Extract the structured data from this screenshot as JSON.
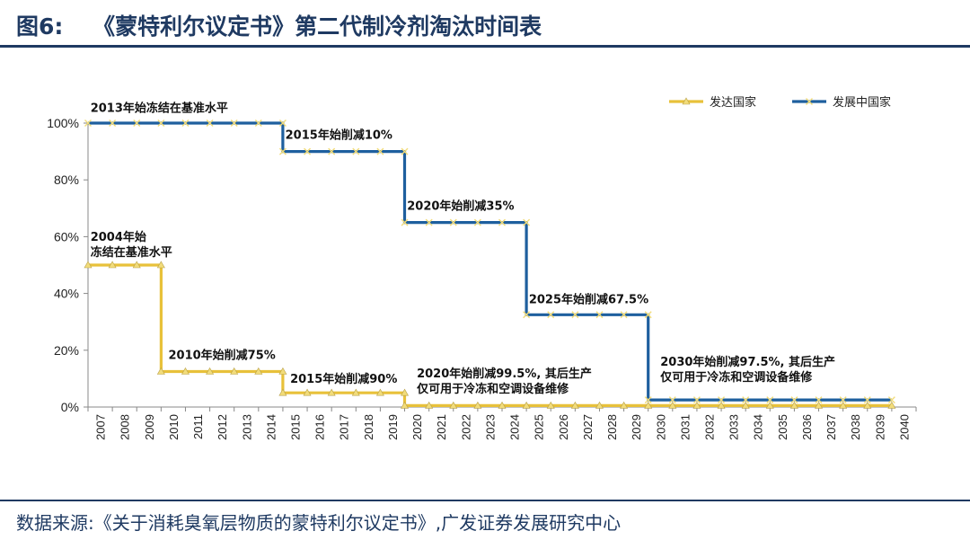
{
  "header": {
    "figure_label": "图6:",
    "title": "《蒙特利尔议定书》第二代制冷剂淘汰时间表"
  },
  "footer": {
    "source": "数据来源:《关于消耗臭氧层物质的蒙特利尔议定书》,广发证券发展研究中心"
  },
  "colors": {
    "developed": "#e8c13a",
    "developing": "#1e5f9e",
    "marker": "#f2dc7a",
    "title": "#1f3a62"
  },
  "chart_data": {
    "type": "line",
    "step": true,
    "x": [
      2007,
      2008,
      2009,
      2010,
      2011,
      2012,
      2013,
      2014,
      2015,
      2016,
      2017,
      2018,
      2019,
      2020,
      2021,
      2022,
      2023,
      2024,
      2025,
      2026,
      2027,
      2028,
      2029,
      2030,
      2031,
      2032,
      2033,
      2034,
      2035,
      2036,
      2037,
      2038,
      2039,
      2040
    ],
    "xtick_labels": [
      "2007",
      "2008",
      "2009",
      "2010",
      "2011",
      "2012",
      "2013",
      "2014",
      "2015",
      "2016",
      "2017",
      "2018",
      "2019",
      "2020",
      "2021",
      "2022",
      "2023",
      "2024",
      "2025",
      "2026",
      "2027",
      "2028",
      "2029",
      "2030",
      "2031",
      "2032",
      "2033",
      "2034",
      "2035",
      "2036",
      "2037",
      "2038",
      "2039",
      "2040"
    ],
    "ylim": [
      0,
      100
    ],
    "yticks": [
      0,
      20,
      40,
      60,
      80,
      100
    ],
    "ytick_labels": [
      "0%",
      "20%",
      "40%",
      "60%",
      "80%",
      "100%"
    ],
    "series": [
      {
        "name": "发达国家",
        "key": "developed",
        "marker": "triangle",
        "steps": [
          {
            "from": 2007,
            "to": 2010,
            "value": 50
          },
          {
            "from": 2010,
            "to": 2015,
            "value": 12.5
          },
          {
            "from": 2015,
            "to": 2020,
            "value": 5
          },
          {
            "from": 2020,
            "to": 2040,
            "value": 0.5
          }
        ]
      },
      {
        "name": "发展中国家",
        "key": "developing",
        "marker": "x",
        "steps": [
          {
            "from": 2007,
            "to": 2015,
            "value": 100
          },
          {
            "from": 2015,
            "to": 2020,
            "value": 90
          },
          {
            "from": 2020,
            "to": 2025,
            "value": 65
          },
          {
            "from": 2025,
            "to": 2030,
            "value": 32.5
          },
          {
            "from": 2030,
            "to": 2040,
            "value": 2.5
          }
        ]
      }
    ],
    "annotations": [
      {
        "key": "a1",
        "lines": [
          "2013年始冻结在基准水平"
        ],
        "x": 2007.1,
        "y": 104
      },
      {
        "key": "a2",
        "lines": [
          "2015年始削减10%"
        ],
        "x": 2015.1,
        "y": 94.5
      },
      {
        "key": "a3",
        "lines": [
          "2020年始削减35%"
        ],
        "x": 2020.1,
        "y": 69.5
      },
      {
        "key": "a4",
        "lines": [
          "2025年始削减67.5%"
        ],
        "x": 2025.1,
        "y": 36.5
      },
      {
        "key": "a5",
        "lines": [
          "2030年始削减97.5%, 其后生产",
          "仅可用于冷冻和空调设备维修"
        ],
        "x": 2030.5,
        "y": 14.5
      },
      {
        "key": "a6",
        "lines": [
          "2004年始",
          "冻结在基准水平"
        ],
        "x": 2007.1,
        "y": 58.5
      },
      {
        "key": "a7",
        "lines": [
          "2010年始削减75%"
        ],
        "x": 2010.3,
        "y": 17
      },
      {
        "key": "a8",
        "lines": [
          "2015年始削减90%"
        ],
        "x": 2015.3,
        "y": 8.5
      },
      {
        "key": "a9",
        "lines": [
          "2020年始削减99.5%, 其后生产",
          "仅可用于冷冻和空调设备维修"
        ],
        "x": 2020.5,
        "y": 10.5
      }
    ],
    "legend": {
      "position": "top-right",
      "items": [
        {
          "label": "发达国家",
          "key": "developed"
        },
        {
          "label": "发展中国家",
          "key": "developing"
        }
      ]
    }
  }
}
